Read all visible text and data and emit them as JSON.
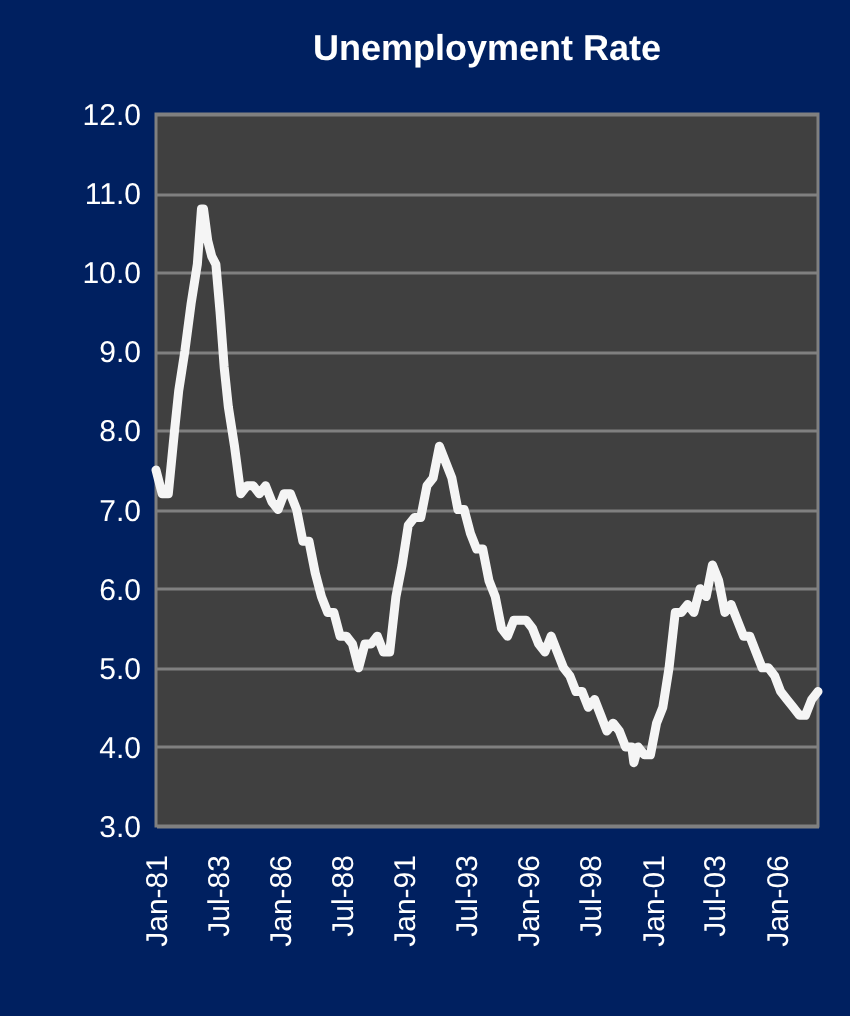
{
  "chart_data": {
    "type": "line",
    "title": "Unemployment Rate",
    "x": [
      "1981-01",
      "1981-04",
      "1981-07",
      "1981-10",
      "1981-12",
      "1982-03",
      "1982-06",
      "1982-09",
      "1982-11",
      "1982-12",
      "1983-02",
      "1983-04",
      "1983-06",
      "1983-08",
      "1983-10",
      "1983-12",
      "1984-03",
      "1984-06",
      "1984-09",
      "1984-12",
      "1985-03",
      "1985-06",
      "1985-09",
      "1985-12",
      "1986-03",
      "1986-06",
      "1986-09",
      "1986-12",
      "1987-03",
      "1987-06",
      "1987-09",
      "1987-12",
      "1988-03",
      "1988-06",
      "1988-09",
      "1988-12",
      "1989-03",
      "1989-06",
      "1989-09",
      "1989-12",
      "1990-03",
      "1990-06",
      "1990-09",
      "1990-12",
      "1991-03",
      "1991-06",
      "1991-09",
      "1991-12",
      "1992-03",
      "1992-06",
      "1992-09",
      "1992-12",
      "1993-03",
      "1993-06",
      "1993-09",
      "1993-12",
      "1994-03",
      "1994-06",
      "1994-09",
      "1994-12",
      "1995-03",
      "1995-06",
      "1995-09",
      "1995-12",
      "1996-03",
      "1996-06",
      "1996-09",
      "1996-12",
      "1997-03",
      "1997-06",
      "1997-09",
      "1997-12",
      "1998-03",
      "1998-06",
      "1998-09",
      "1998-12",
      "1999-03",
      "1999-06",
      "1999-09",
      "1999-12",
      "2000-03",
      "2000-04",
      "2000-06",
      "2000-09",
      "2000-12",
      "2001-03",
      "2001-06",
      "2001-09",
      "2001-12",
      "2002-03",
      "2002-06",
      "2002-09",
      "2002-12",
      "2003-03",
      "2003-06",
      "2003-09",
      "2003-12",
      "2004-03",
      "2004-06",
      "2004-09",
      "2004-12",
      "2005-03",
      "2005-06",
      "2005-09",
      "2005-12",
      "2006-03",
      "2006-06",
      "2006-09",
      "2006-12",
      "2007-03",
      "2007-06",
      "2007-09"
    ],
    "series": [
      {
        "color": "#f5f5f5",
        "values": [
          7.5,
          7.2,
          7.2,
          8.0,
          8.5,
          9.0,
          9.6,
          10.1,
          10.8,
          10.8,
          10.4,
          10.2,
          10.1,
          9.5,
          8.8,
          8.3,
          7.8,
          7.2,
          7.3,
          7.3,
          7.2,
          7.3,
          7.1,
          7.0,
          7.2,
          7.2,
          7.0,
          6.6,
          6.6,
          6.2,
          5.9,
          5.7,
          5.7,
          5.4,
          5.4,
          5.3,
          5.0,
          5.3,
          5.3,
          5.4,
          5.2,
          5.2,
          5.9,
          6.3,
          6.8,
          6.9,
          6.9,
          7.3,
          7.4,
          7.8,
          7.6,
          7.4,
          7.0,
          7.0,
          6.7,
          6.5,
          6.5,
          6.1,
          5.9,
          5.5,
          5.4,
          5.6,
          5.6,
          5.6,
          5.5,
          5.3,
          5.2,
          5.4,
          5.2,
          5.0,
          4.9,
          4.7,
          4.7,
          4.5,
          4.6,
          4.4,
          4.2,
          4.3,
          4.2,
          4.0,
          4.0,
          3.8,
          4.0,
          3.9,
          3.9,
          4.3,
          4.5,
          5.0,
          5.7,
          5.7,
          5.8,
          5.7,
          6.0,
          5.9,
          6.3,
          6.1,
          5.7,
          5.8,
          5.6,
          5.4,
          5.4,
          5.2,
          5.0,
          5.0,
          4.9,
          4.7,
          4.6,
          4.5,
          4.4,
          4.4,
          4.6,
          4.7
        ]
      }
    ],
    "xlim": [
      "1981-01",
      "2007-09"
    ],
    "xticks": [
      {
        "value": "1981-01",
        "label": "Jan-81"
      },
      {
        "value": "1983-07",
        "label": "Jul-83"
      },
      {
        "value": "1986-01",
        "label": "Jan-86"
      },
      {
        "value": "1988-07",
        "label": "Jul-88"
      },
      {
        "value": "1991-01",
        "label": "Jan-91"
      },
      {
        "value": "1993-07",
        "label": "Jul-93"
      },
      {
        "value": "1996-01",
        "label": "Jan-96"
      },
      {
        "value": "1998-07",
        "label": "Jul-98"
      },
      {
        "value": "2001-01",
        "label": "Jan-01"
      },
      {
        "value": "2003-07",
        "label": "Jul-03"
      },
      {
        "value": "2006-01",
        "label": "Jan-06"
      }
    ],
    "ylim": [
      3,
      12
    ],
    "yticks": [
      {
        "value": 3,
        "label": "3.0"
      },
      {
        "value": 4,
        "label": "4.0"
      },
      {
        "value": 5,
        "label": "5.0"
      },
      {
        "value": 6,
        "label": "6.0"
      },
      {
        "value": 7,
        "label": "7.0"
      },
      {
        "value": 8,
        "label": "8.0"
      },
      {
        "value": 9,
        "label": "9.0"
      },
      {
        "value": 10,
        "label": "10.0"
      },
      {
        "value": 11,
        "label": "11.0"
      },
      {
        "value": 12,
        "label": "12.0"
      }
    ],
    "grid": "y",
    "line_style": "solid"
  }
}
